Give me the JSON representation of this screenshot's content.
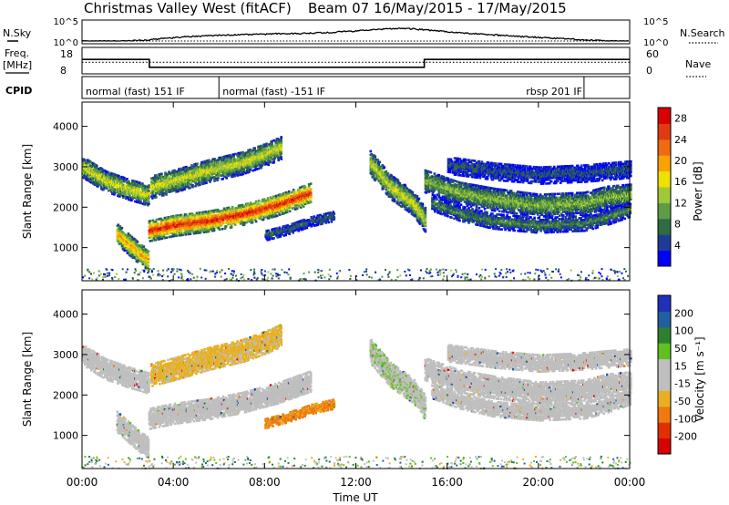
{
  "header": {
    "site": "Christmas Valley West (fitACF)",
    "beam_info": "Beam 07  16/May/2015 - 17/May/2015"
  },
  "top_panels": {
    "nsky_label": "N.Sky",
    "nsky_ticks": [
      "10^5",
      "10^0"
    ],
    "nsearch_label": "N.Search",
    "nsearch_ticks": [
      "10^5",
      "10^0"
    ],
    "freq_label_1": "Freq.",
    "freq_label_2": "[MHz]",
    "freq_ticks": [
      "18",
      "8"
    ],
    "nave_label": "Nave",
    "nave_ticks": [
      "60",
      "0"
    ],
    "cpid_label": "CPID",
    "cpid_segments": [
      {
        "label": "normal (fast) 151 IF",
        "start_hour": 0,
        "end_hour": 6
      },
      {
        "label": "normal (fast) -151 IF",
        "start_hour": 6,
        "end_hour": 22
      },
      {
        "label": "rbsp 201 IF",
        "start_hour": 22,
        "end_hour": 24
      }
    ]
  },
  "colors": {
    "power_scale": [
      "#0000ff",
      "#1e3c96",
      "#2f6b44",
      "#5e9c46",
      "#9fc93a",
      "#f0e000",
      "#f7a300",
      "#ef6a10",
      "#e03a10",
      "#d80000"
    ],
    "velocity_scale": [
      "#2030b8",
      "#2060a0",
      "#2e8030",
      "#60c020",
      "#bfbfbf",
      "#bfbfbf",
      "#e8b020",
      "#f07a10",
      "#e03000",
      "#d80000"
    ]
  },
  "chart_data": [
    {
      "type": "line",
      "title": "N.Sky / N.Search",
      "x": [
        0,
        1,
        2,
        3,
        4,
        5,
        6,
        7,
        8,
        9,
        10,
        11,
        12,
        13,
        14,
        15,
        16,
        17,
        18,
        19,
        20,
        21,
        22,
        23,
        24
      ],
      "y_nsky": [
        1,
        1,
        1,
        2,
        8,
        20,
        40,
        60,
        80,
        120,
        150,
        250,
        600,
        1500,
        3000,
        1200,
        300,
        120,
        50,
        20,
        10,
        5,
        2,
        1,
        1
      ],
      "y_nsearch": [
        1,
        1,
        1,
        1,
        1,
        1,
        1,
        1,
        1,
        1,
        1,
        1,
        1,
        1,
        1,
        1,
        1,
        1,
        1,
        1,
        1,
        1,
        1,
        1,
        1
      ],
      "yscale": "log",
      "ylim": [
        1,
        100000
      ]
    },
    {
      "type": "line",
      "title": "Freq. / Nave",
      "x": [
        0,
        2.95,
        2.95,
        15.0,
        15.0,
        24
      ],
      "freq_mhz": [
        13.5,
        13.5,
        10.3,
        10.3,
        13.5,
        13.5
      ],
      "nave": [
        26,
        26,
        26,
        26,
        26,
        26
      ],
      "freq_ylim": [
        8,
        18
      ],
      "nave_ylim": [
        0,
        60
      ]
    },
    {
      "type": "heatmap",
      "name": "Power",
      "xlabel": "Time UT",
      "ylabel": "Slant Range [km]",
      "colorbar_label": "Power [dB]",
      "colorbar_ticks": [
        "4",
        "8",
        "12",
        "16",
        "20",
        "24",
        "28"
      ],
      "colorbar_range": [
        0,
        30
      ],
      "x_ticks": [
        "00:00",
        "04:00",
        "08:00",
        "12:00",
        "16:00",
        "20:00",
        "00:00"
      ],
      "y_ticks": [
        "1000",
        "2000",
        "3000",
        "4000"
      ],
      "xlim": [
        0,
        24
      ],
      "ylim": [
        180,
        4600
      ],
      "bands": [
        {
          "x": [
            0,
            1.0,
            2.0,
            2.9
          ],
          "center": [
            3000,
            2650,
            2450,
            2300
          ],
          "width": 260,
          "power": 14
        },
        {
          "x": [
            1.5,
            2.0,
            2.5,
            2.9
          ],
          "center": [
            1350,
            1100,
            850,
            700
          ],
          "width": 260,
          "power": 18
        },
        {
          "x": [
            2.9,
            4.0,
            5.5,
            7.0,
            8.5,
            10.0
          ],
          "center": [
            1420,
            1550,
            1660,
            1820,
            2050,
            2350
          ],
          "width": 260,
          "power": 24
        },
        {
          "x": [
            3.0,
            4.0,
            5.5,
            7.0,
            8.0,
            8.7
          ],
          "center": [
            2500,
            2650,
            2900,
            3100,
            3300,
            3480
          ],
          "width": 280,
          "power": 14
        },
        {
          "x": [
            8.0,
            9.0,
            10.0,
            11.0
          ],
          "center": [
            1300,
            1450,
            1650,
            1780
          ],
          "width": 120,
          "power": 6
        },
        {
          "x": [
            12.6,
            13.5,
            14.5,
            15.0
          ],
          "center": [
            3100,
            2500,
            2100,
            1700
          ],
          "width": 300,
          "power": 14
        },
        {
          "x": [
            15.0,
            16.5,
            18.0,
            20.0,
            22.0,
            23.0,
            24.0
          ],
          "center": [
            2650,
            2350,
            2200,
            2050,
            2100,
            2250,
            2300
          ],
          "width": 280,
          "power": 11
        },
        {
          "x": [
            15.3,
            16.5,
            18.0,
            20.0,
            22.0,
            23.0,
            24.0
          ],
          "center": [
            2100,
            1850,
            1650,
            1550,
            1600,
            1750,
            1950
          ],
          "width": 180,
          "power": 8
        },
        {
          "x": [
            16.0,
            18.0,
            20.0,
            22.0,
            24.0
          ],
          "center": [
            3050,
            2900,
            2800,
            2850,
            2950
          ],
          "width": 220,
          "power": 5
        }
      ]
    },
    {
      "type": "heatmap",
      "name": "Velocity",
      "xlabel": "Time UT",
      "ylabel": "Slant Range [km]",
      "colorbar_label": "Velocity [m s⁻¹]",
      "colorbar_ticks": [
        "200",
        "100",
        "50",
        "15",
        "-15",
        "-50",
        "-100",
        "-200"
      ],
      "colorbar_range": [
        -250,
        250
      ],
      "x_ticks": [
        "00:00",
        "04:00",
        "08:00",
        "12:00",
        "16:00",
        "20:00",
        "00:00"
      ],
      "y_ticks": [
        "1000",
        "2000",
        "3000",
        "4000"
      ],
      "xlim": [
        0,
        24
      ],
      "ylim": [
        180,
        4600
      ],
      "bands": [
        {
          "x": [
            0,
            1.0,
            2.0,
            2.9
          ],
          "center": [
            3000,
            2650,
            2450,
            2300
          ],
          "width": 260,
          "velocity": 0
        },
        {
          "x": [
            1.5,
            2.0,
            2.5,
            2.9
          ],
          "center": [
            1350,
            1100,
            850,
            700
          ],
          "width": 260,
          "velocity": 0
        },
        {
          "x": [
            2.9,
            4.0,
            5.5,
            7.0,
            8.5,
            10.0
          ],
          "center": [
            1420,
            1550,
            1660,
            1820,
            2050,
            2350
          ],
          "width": 260,
          "velocity": 0
        },
        {
          "x": [
            3.0,
            4.0,
            5.5,
            7.0,
            8.0,
            8.7
          ],
          "center": [
            2500,
            2650,
            2900,
            3100,
            3300,
            3480
          ],
          "width": 280,
          "velocity": -60
        },
        {
          "x": [
            8.0,
            9.0,
            10.0,
            11.0
          ],
          "center": [
            1300,
            1450,
            1650,
            1780
          ],
          "width": 120,
          "velocity": -110
        },
        {
          "x": [
            12.6,
            13.5,
            14.5,
            15.0
          ],
          "center": [
            3100,
            2500,
            2100,
            1700
          ],
          "width": 300,
          "velocity": 40
        },
        {
          "x": [
            15.0,
            16.5,
            18.0,
            20.0,
            22.0,
            23.0,
            24.0
          ],
          "center": [
            2650,
            2350,
            2200,
            2050,
            2100,
            2250,
            2300
          ],
          "width": 280,
          "velocity": 0
        },
        {
          "x": [
            15.3,
            16.5,
            18.0,
            20.0,
            22.0,
            23.0,
            24.0
          ],
          "center": [
            2100,
            1850,
            1650,
            1550,
            1600,
            1750,
            1950
          ],
          "width": 180,
          "velocity": 0
        },
        {
          "x": [
            16.0,
            18.0,
            20.0,
            22.0,
            24.0
          ],
          "center": [
            3050,
            2900,
            2800,
            2850,
            2950
          ],
          "width": 220,
          "velocity": 0
        }
      ]
    }
  ]
}
